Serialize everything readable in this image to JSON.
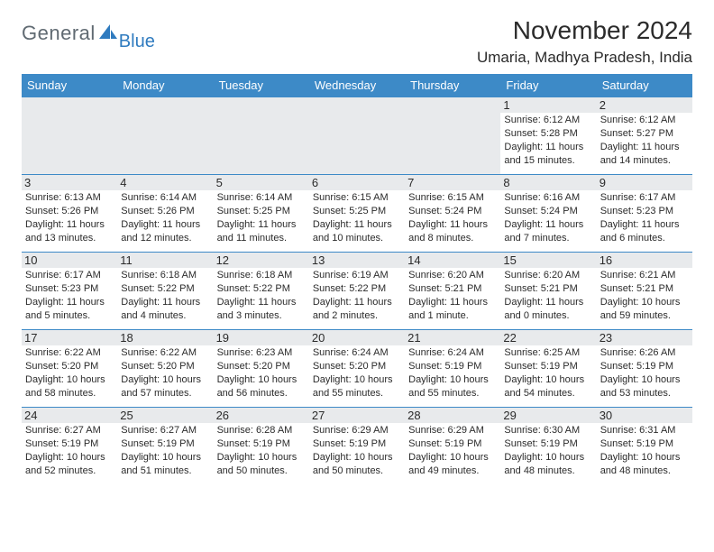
{
  "brand": {
    "text1": "General",
    "text2": "Blue"
  },
  "title": "November 2024",
  "location": "Umaria, Madhya Pradesh, India",
  "colors": {
    "header_bg": "#3d8ac7",
    "header_text": "#ffffff",
    "border": "#3d8ac7",
    "shade": "#e8eaec",
    "text": "#2b2b2b",
    "brand_gray": "#606a72",
    "brand_blue": "#2f7bbf",
    "page_bg": "#ffffff"
  },
  "typography": {
    "title_fontsize": 28,
    "location_fontsize": 17,
    "dayheader_fontsize": 13,
    "daynum_fontsize": 13,
    "info_fontsize": 11
  },
  "layout": {
    "columns": 7,
    "rows": 5,
    "leading_blanks": 5,
    "trailing_blanks": 0
  },
  "day_headers": [
    "Sunday",
    "Monday",
    "Tuesday",
    "Wednesday",
    "Thursday",
    "Friday",
    "Saturday"
  ],
  "days": [
    {
      "n": 1,
      "sunrise": "6:12 AM",
      "sunset": "5:28 PM",
      "daylight": "11 hours and 15 minutes."
    },
    {
      "n": 2,
      "sunrise": "6:12 AM",
      "sunset": "5:27 PM",
      "daylight": "11 hours and 14 minutes."
    },
    {
      "n": 3,
      "sunrise": "6:13 AM",
      "sunset": "5:26 PM",
      "daylight": "11 hours and 13 minutes."
    },
    {
      "n": 4,
      "sunrise": "6:14 AM",
      "sunset": "5:26 PM",
      "daylight": "11 hours and 12 minutes."
    },
    {
      "n": 5,
      "sunrise": "6:14 AM",
      "sunset": "5:25 PM",
      "daylight": "11 hours and 11 minutes."
    },
    {
      "n": 6,
      "sunrise": "6:15 AM",
      "sunset": "5:25 PM",
      "daylight": "11 hours and 10 minutes."
    },
    {
      "n": 7,
      "sunrise": "6:15 AM",
      "sunset": "5:24 PM",
      "daylight": "11 hours and 8 minutes."
    },
    {
      "n": 8,
      "sunrise": "6:16 AM",
      "sunset": "5:24 PM",
      "daylight": "11 hours and 7 minutes."
    },
    {
      "n": 9,
      "sunrise": "6:17 AM",
      "sunset": "5:23 PM",
      "daylight": "11 hours and 6 minutes."
    },
    {
      "n": 10,
      "sunrise": "6:17 AM",
      "sunset": "5:23 PM",
      "daylight": "11 hours and 5 minutes."
    },
    {
      "n": 11,
      "sunrise": "6:18 AM",
      "sunset": "5:22 PM",
      "daylight": "11 hours and 4 minutes."
    },
    {
      "n": 12,
      "sunrise": "6:18 AM",
      "sunset": "5:22 PM",
      "daylight": "11 hours and 3 minutes."
    },
    {
      "n": 13,
      "sunrise": "6:19 AM",
      "sunset": "5:22 PM",
      "daylight": "11 hours and 2 minutes."
    },
    {
      "n": 14,
      "sunrise": "6:20 AM",
      "sunset": "5:21 PM",
      "daylight": "11 hours and 1 minute."
    },
    {
      "n": 15,
      "sunrise": "6:20 AM",
      "sunset": "5:21 PM",
      "daylight": "11 hours and 0 minutes."
    },
    {
      "n": 16,
      "sunrise": "6:21 AM",
      "sunset": "5:21 PM",
      "daylight": "10 hours and 59 minutes."
    },
    {
      "n": 17,
      "sunrise": "6:22 AM",
      "sunset": "5:20 PM",
      "daylight": "10 hours and 58 minutes."
    },
    {
      "n": 18,
      "sunrise": "6:22 AM",
      "sunset": "5:20 PM",
      "daylight": "10 hours and 57 minutes."
    },
    {
      "n": 19,
      "sunrise": "6:23 AM",
      "sunset": "5:20 PM",
      "daylight": "10 hours and 56 minutes."
    },
    {
      "n": 20,
      "sunrise": "6:24 AM",
      "sunset": "5:20 PM",
      "daylight": "10 hours and 55 minutes."
    },
    {
      "n": 21,
      "sunrise": "6:24 AM",
      "sunset": "5:19 PM",
      "daylight": "10 hours and 55 minutes."
    },
    {
      "n": 22,
      "sunrise": "6:25 AM",
      "sunset": "5:19 PM",
      "daylight": "10 hours and 54 minutes."
    },
    {
      "n": 23,
      "sunrise": "6:26 AM",
      "sunset": "5:19 PM",
      "daylight": "10 hours and 53 minutes."
    },
    {
      "n": 24,
      "sunrise": "6:27 AM",
      "sunset": "5:19 PM",
      "daylight": "10 hours and 52 minutes."
    },
    {
      "n": 25,
      "sunrise": "6:27 AM",
      "sunset": "5:19 PM",
      "daylight": "10 hours and 51 minutes."
    },
    {
      "n": 26,
      "sunrise": "6:28 AM",
      "sunset": "5:19 PM",
      "daylight": "10 hours and 50 minutes."
    },
    {
      "n": 27,
      "sunrise": "6:29 AM",
      "sunset": "5:19 PM",
      "daylight": "10 hours and 50 minutes."
    },
    {
      "n": 28,
      "sunrise": "6:29 AM",
      "sunset": "5:19 PM",
      "daylight": "10 hours and 49 minutes."
    },
    {
      "n": 29,
      "sunrise": "6:30 AM",
      "sunset": "5:19 PM",
      "daylight": "10 hours and 48 minutes."
    },
    {
      "n": 30,
      "sunrise": "6:31 AM",
      "sunset": "5:19 PM",
      "daylight": "10 hours and 48 minutes."
    }
  ],
  "labels": {
    "sunrise": "Sunrise: ",
    "sunset": "Sunset: ",
    "daylight": "Daylight: "
  }
}
